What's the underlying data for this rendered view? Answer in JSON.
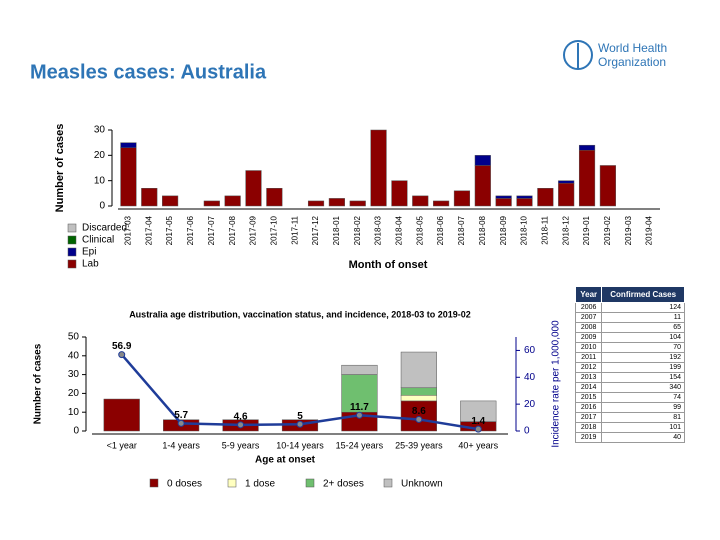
{
  "title": "Measles cases: Australia",
  "logo": [
    "World Health",
    "Organization"
  ],
  "chart_data": [
    {
      "type": "bar",
      "stacked": true,
      "y_label": "Number of cases",
      "x_label": "Month of onset",
      "categories": [
        "2017-03",
        "2017-04",
        "2017-05",
        "2017-06",
        "2017-07",
        "2017-08",
        "2017-09",
        "2017-10",
        "2017-11",
        "2017-12",
        "2018-01",
        "2018-02",
        "2018-03",
        "2018-04",
        "2018-05",
        "2018-06",
        "2018-07",
        "2018-08",
        "2018-09",
        "2018-10",
        "2018-11",
        "2018-12",
        "2019-01",
        "2019-02",
        "2019-03",
        "2019-04"
      ],
      "series": [
        {
          "name": "Lab",
          "color": "#8b0000",
          "values": [
            23,
            7,
            4,
            0,
            2,
            4,
            14,
            7,
            0,
            2,
            3,
            2,
            30,
            10,
            4,
            2,
            6,
            16,
            3,
            3,
            7,
            9,
            22,
            16,
            0,
            0
          ]
        },
        {
          "name": "Epi",
          "color": "#00008b",
          "values": [
            2,
            0,
            0,
            0,
            0,
            0,
            0,
            0,
            0,
            0,
            0,
            0,
            0,
            0,
            0,
            0,
            0,
            4,
            1,
            1,
            0,
            1,
            2,
            0,
            0,
            0
          ]
        },
        {
          "name": "Clinical",
          "color": "#006400",
          "values": [
            0,
            0,
            0,
            0,
            0,
            0,
            0,
            0,
            0,
            0,
            0,
            0,
            0,
            0,
            0,
            0,
            0,
            0,
            0,
            0,
            0,
            0,
            0,
            0,
            0,
            0
          ]
        },
        {
          "name": "Discarded",
          "color": "#c0c0c0",
          "values": [
            0,
            0,
            0,
            0,
            0,
            0,
            0,
            0,
            0,
            0,
            0,
            0,
            0,
            0,
            0,
            0,
            0,
            0,
            0,
            0,
            0,
            0,
            0,
            0,
            0,
            0
          ]
        }
      ],
      "ylim": [
        0,
        30
      ],
      "yticks": [
        0,
        10,
        20,
        30
      ],
      "legend": "bottom-left"
    },
    {
      "type": "bar",
      "stacked": true,
      "title": "Australia age distribution, vaccination status, and incidence, 2018-03 to 2019-02",
      "y_label": "Number of cases",
      "y2_label": "Incidence rate per 1,000,000",
      "x_label": "Age at onset",
      "categories": [
        "<1 year",
        "1-4 years",
        "5-9 years",
        "10-14 years",
        "15-24 years",
        "25-39 years",
        "40+ years"
      ],
      "series": [
        {
          "name": "0 doses",
          "color": "#8b0000",
          "values": [
            17,
            6,
            6,
            6,
            10,
            16,
            5
          ]
        },
        {
          "name": "1 dose",
          "color": "#ffffc0",
          "values": [
            0,
            0,
            0,
            0,
            0,
            3,
            0
          ]
        },
        {
          "name": "2+ doses",
          "color": "#6fbf6f",
          "values": [
            0,
            0,
            0,
            0,
            20,
            4,
            0
          ]
        },
        {
          "name": "Unknown",
          "color": "#c0c0c0",
          "values": [
            0,
            0,
            0,
            0,
            5,
            19,
            11
          ]
        },
        {
          "type": "line",
          "axis": "y2",
          "color": "#1f3c99",
          "values": [
            56.9,
            5.7,
            4.6,
            5,
            11.7,
            8.6,
            1.4
          ]
        }
      ],
      "ylim": [
        0,
        50
      ],
      "yticks": [
        0,
        10,
        20,
        30,
        40,
        50
      ],
      "y2lim": [
        0,
        70
      ],
      "y2ticks": [
        0,
        20,
        40,
        60
      ],
      "legend": "bottom"
    }
  ],
  "table": {
    "header": [
      "Year",
      "Confirmed Cases"
    ],
    "rows": [
      [
        "2006",
        "124"
      ],
      [
        "2007",
        "11"
      ],
      [
        "2008",
        "65"
      ],
      [
        "2009",
        "104"
      ],
      [
        "2010",
        "70"
      ],
      [
        "2011",
        "192"
      ],
      [
        "2012",
        "199"
      ],
      [
        "2013",
        "154"
      ],
      [
        "2014",
        "340"
      ],
      [
        "2015",
        "74"
      ],
      [
        "2016",
        "99"
      ],
      [
        "2017",
        "81"
      ],
      [
        "2018",
        "101"
      ],
      [
        "2019",
        "40"
      ]
    ]
  }
}
